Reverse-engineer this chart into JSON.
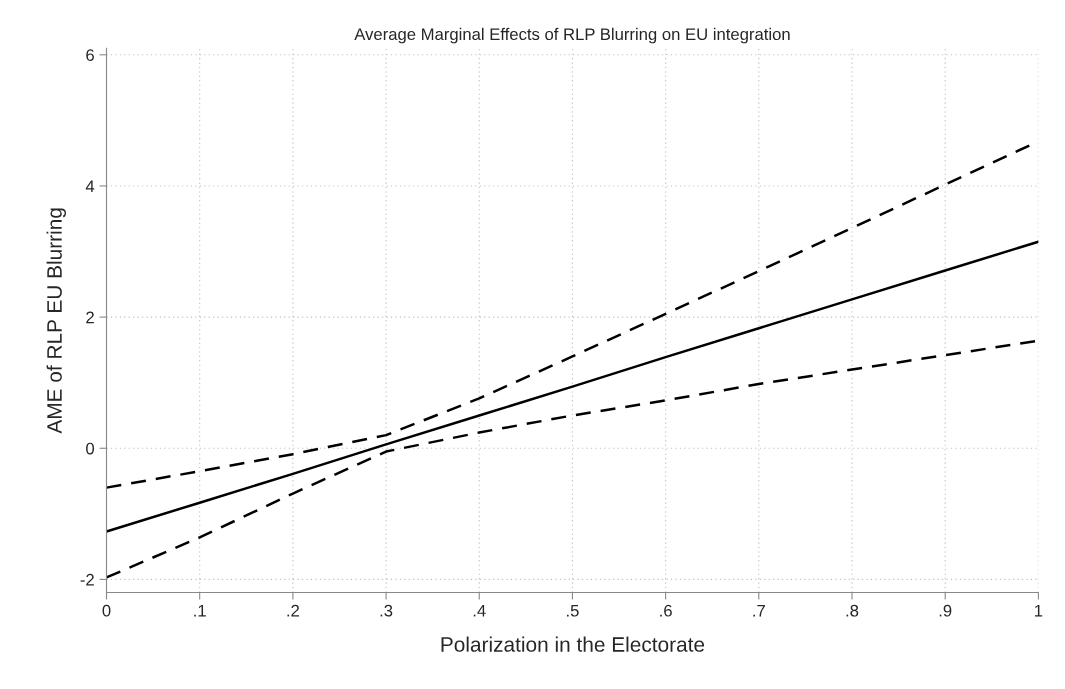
{
  "chart_data": {
    "type": "line",
    "title": "Average Marginal Effects of RLP Blurring on EU integration",
    "xlabel": "Polarization in the Electorate",
    "ylabel": "AME of RLP EU Blurring",
    "x": [
      0,
      0.1,
      0.2,
      0.3,
      0.4,
      0.5,
      0.6,
      0.7,
      0.8,
      0.9,
      1
    ],
    "series": [
      {
        "color": "#000000",
        "line_style": "solid",
        "values": [
          -1.27,
          -0.83,
          -0.39,
          0.06,
          0.5,
          0.94,
          1.39,
          1.83,
          2.27,
          2.71,
          3.15
        ]
      },
      {
        "color": "#000000",
        "line_style": "dashed",
        "values": [
          -0.6,
          -0.35,
          -0.09,
          0.2,
          0.76,
          1.4,
          2.05,
          2.7,
          3.36,
          4.02,
          4.68
        ]
      },
      {
        "color": "#000000",
        "line_style": "dashed",
        "values": [
          -1.97,
          -1.36,
          -0.69,
          -0.05,
          0.24,
          0.5,
          0.73,
          0.98,
          1.2,
          1.42,
          1.64
        ]
      }
    ],
    "xlim": [
      0,
      1
    ],
    "ylim": [
      -2.2,
      6.1
    ],
    "xticks": [
      {
        "value": 0,
        "label": "0"
      },
      {
        "value": 0.1,
        "label": ".1"
      },
      {
        "value": 0.2,
        "label": ".2"
      },
      {
        "value": 0.3,
        "label": ".3"
      },
      {
        "value": 0.4,
        "label": ".4"
      },
      {
        "value": 0.5,
        "label": ".5"
      },
      {
        "value": 0.6,
        "label": ".6"
      },
      {
        "value": 0.7,
        "label": ".7"
      },
      {
        "value": 0.8,
        "label": ".8"
      },
      {
        "value": 0.9,
        "label": ".9"
      },
      {
        "value": 1,
        "label": "1"
      }
    ],
    "yticks": [
      -2,
      0,
      2,
      4,
      6
    ],
    "grid": true
  }
}
